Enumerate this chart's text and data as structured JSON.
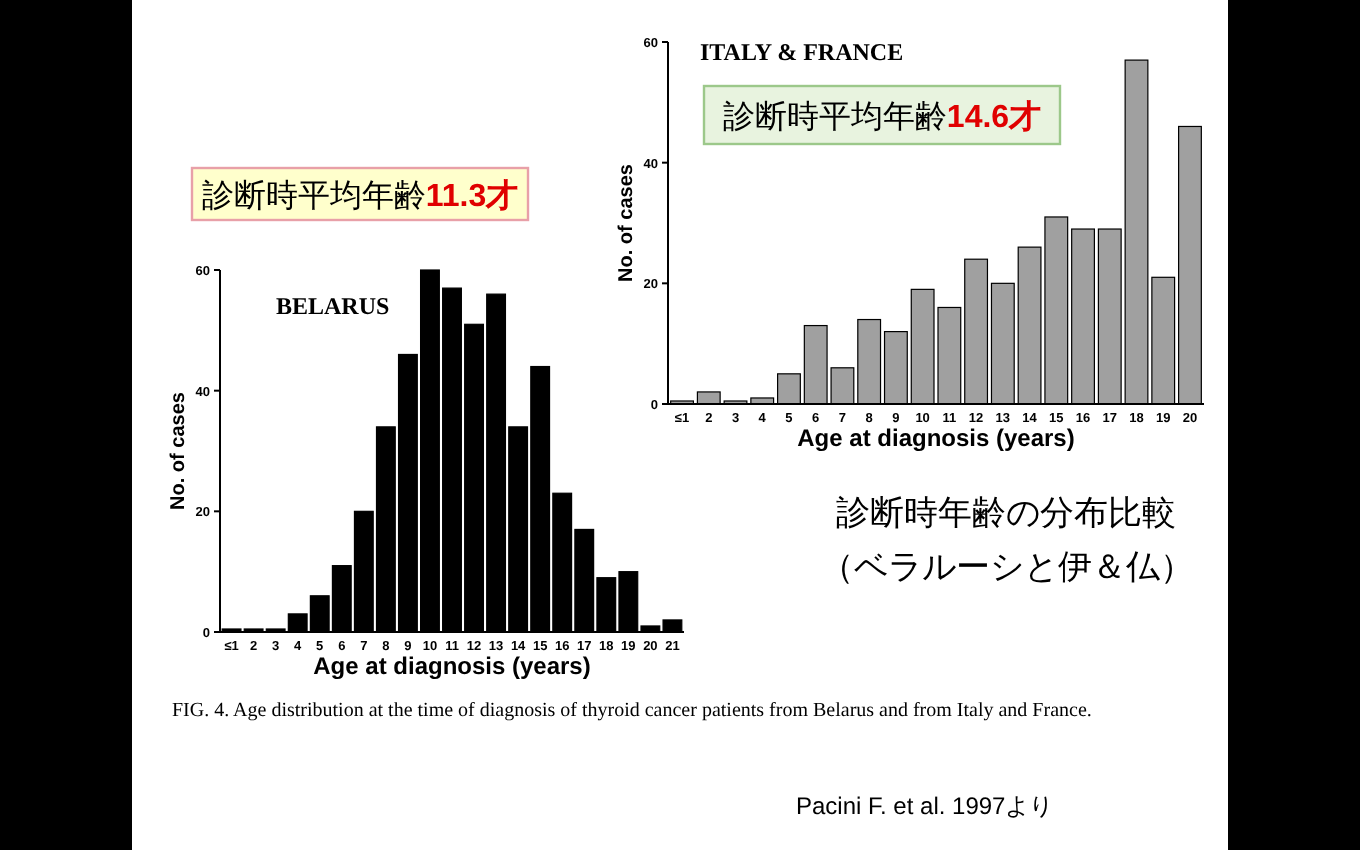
{
  "chart_data": [
    {
      "type": "bar",
      "title": "BELARUS",
      "xlabel": "Age at diagnosis (years)",
      "ylabel": "No. of cases",
      "categories": [
        "≤1",
        "2",
        "3",
        "4",
        "5",
        "6",
        "7",
        "8",
        "9",
        "10",
        "11",
        "12",
        "13",
        "14",
        "15",
        "16",
        "17",
        "18",
        "19",
        "20",
        "21"
      ],
      "values": [
        0.5,
        0.5,
        0.5,
        3,
        6,
        11,
        20,
        34,
        46,
        60,
        57,
        51,
        56,
        34,
        44,
        23,
        17,
        9,
        10,
        1,
        2
      ],
      "color": "#000000",
      "ylim": [
        0,
        60
      ],
      "yticks": [
        0,
        20,
        40,
        60
      ],
      "annotations": [
        "診断時平均年齢11.3才",
        "FIG. 4. Age distribution at the time of diagnosis of thyroid cancer patients from Belarus and from Italy and France."
      ]
    },
    {
      "type": "bar",
      "title": "ITALY & FRANCE",
      "xlabel": "Age at diagnosis (years)",
      "ylabel": "No. of cases",
      "categories": [
        "≤1",
        "2",
        "3",
        "4",
        "5",
        "6",
        "7",
        "8",
        "9",
        "10",
        "11",
        "12",
        "13",
        "14",
        "15",
        "16",
        "17",
        "18",
        "19",
        "20"
      ],
      "values": [
        0.5,
        2,
        0.5,
        1,
        5,
        13,
        6,
        14,
        12,
        19,
        16,
        24,
        20,
        26,
        31,
        29,
        29,
        57,
        21,
        46
      ],
      "color": "#a0a0a0",
      "ylim": [
        0,
        60
      ],
      "yticks": [
        0,
        20,
        40,
        60
      ],
      "annotations": [
        "診断時平均年齢14.6才",
        "診断時年齢の分布比較",
        "（ベラルーシと伊＆仏）",
        "Pacini F. et al. 1997より"
      ]
    }
  ]
}
